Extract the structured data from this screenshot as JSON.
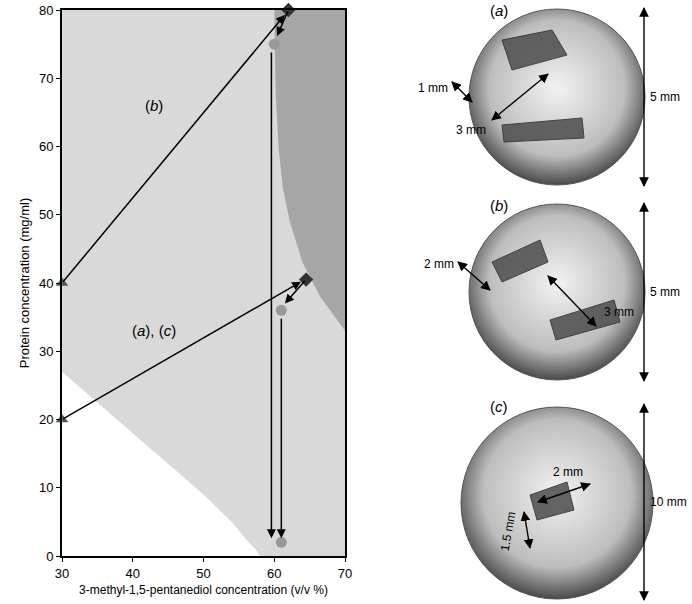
{
  "chart_data": {
    "type": "phase_diagram",
    "x_label": "3-methyl-1,5-pentanediol concentration (v/v %)",
    "y_label": "Protein concentration (mg/ml)",
    "xlim": [
      30,
      70
    ],
    "ylim": [
      0,
      80
    ],
    "xticks": [
      30,
      40,
      50,
      60,
      70
    ],
    "yticks": [
      0,
      10,
      20,
      30,
      40,
      50,
      60,
      70,
      80
    ],
    "grid": false,
    "regions": [
      {
        "color": "#d9d9d9",
        "x": [
          30,
          70,
          70,
          30
        ],
        "y": [
          0,
          0,
          80,
          80
        ]
      },
      {
        "color": "#ffffff",
        "x": [
          30,
          30,
          40,
          50,
          54,
          56,
          57.5,
          58
        ],
        "y": [
          0,
          27,
          18,
          9,
          5,
          2.5,
          0.8,
          0
        ]
      },
      {
        "color": "#a6a6a6",
        "x": [
          60,
          60.2,
          60.6,
          61.2,
          62.2,
          64,
          66.5,
          70,
          70
        ],
        "y": [
          80,
          68,
          60,
          54,
          49,
          43,
          38,
          33,
          80
        ]
      }
    ],
    "series": [
      {
        "marker": "triangle",
        "color": "#555555",
        "x": [
          30,
          30
        ],
        "y": [
          20,
          40
        ]
      },
      {
        "marker": "diamond",
        "color": "#333333",
        "x": [
          62,
          64.5
        ],
        "y": [
          80,
          40.5
        ]
      },
      {
        "marker": "circle",
        "color": "#999999",
        "x": [
          60,
          61,
          61
        ],
        "y": [
          75,
          36,
          2
        ]
      }
    ],
    "arrows": [
      {
        "from": [
          30,
          40
        ],
        "to": [
          61.5,
          79.3
        ]
      },
      {
        "from": [
          30,
          20
        ],
        "to": [
          63.8,
          40.2
        ]
      },
      {
        "from": [
          62,
          80
        ],
        "to": [
          60.4,
          76.2
        ]
      },
      {
        "from": [
          64.5,
          40.5
        ],
        "to": [
          61.5,
          37
        ]
      },
      {
        "from": [
          59.6,
          74
        ],
        "to": [
          59.6,
          2.6
        ]
      },
      {
        "from": [
          61,
          35
        ],
        "to": [
          61,
          2.6
        ]
      }
    ],
    "annotations": [
      {
        "text": "(b)",
        "x": 43,
        "y": 66
      },
      {
        "text": "(a), (c)",
        "x": 43,
        "y": 33
      }
    ]
  },
  "panels": [
    {
      "label": "(a)",
      "scale": "5 mm",
      "measurements": [
        "1 mm",
        "3 mm"
      ]
    },
    {
      "label": "(b)",
      "scale": "5 mm",
      "measurements": [
        "2 mm",
        "3 mm"
      ]
    },
    {
      "label": "(c)",
      "scale": "10 mm",
      "measurements": [
        "2 mm",
        "1.5 mm"
      ]
    }
  ]
}
